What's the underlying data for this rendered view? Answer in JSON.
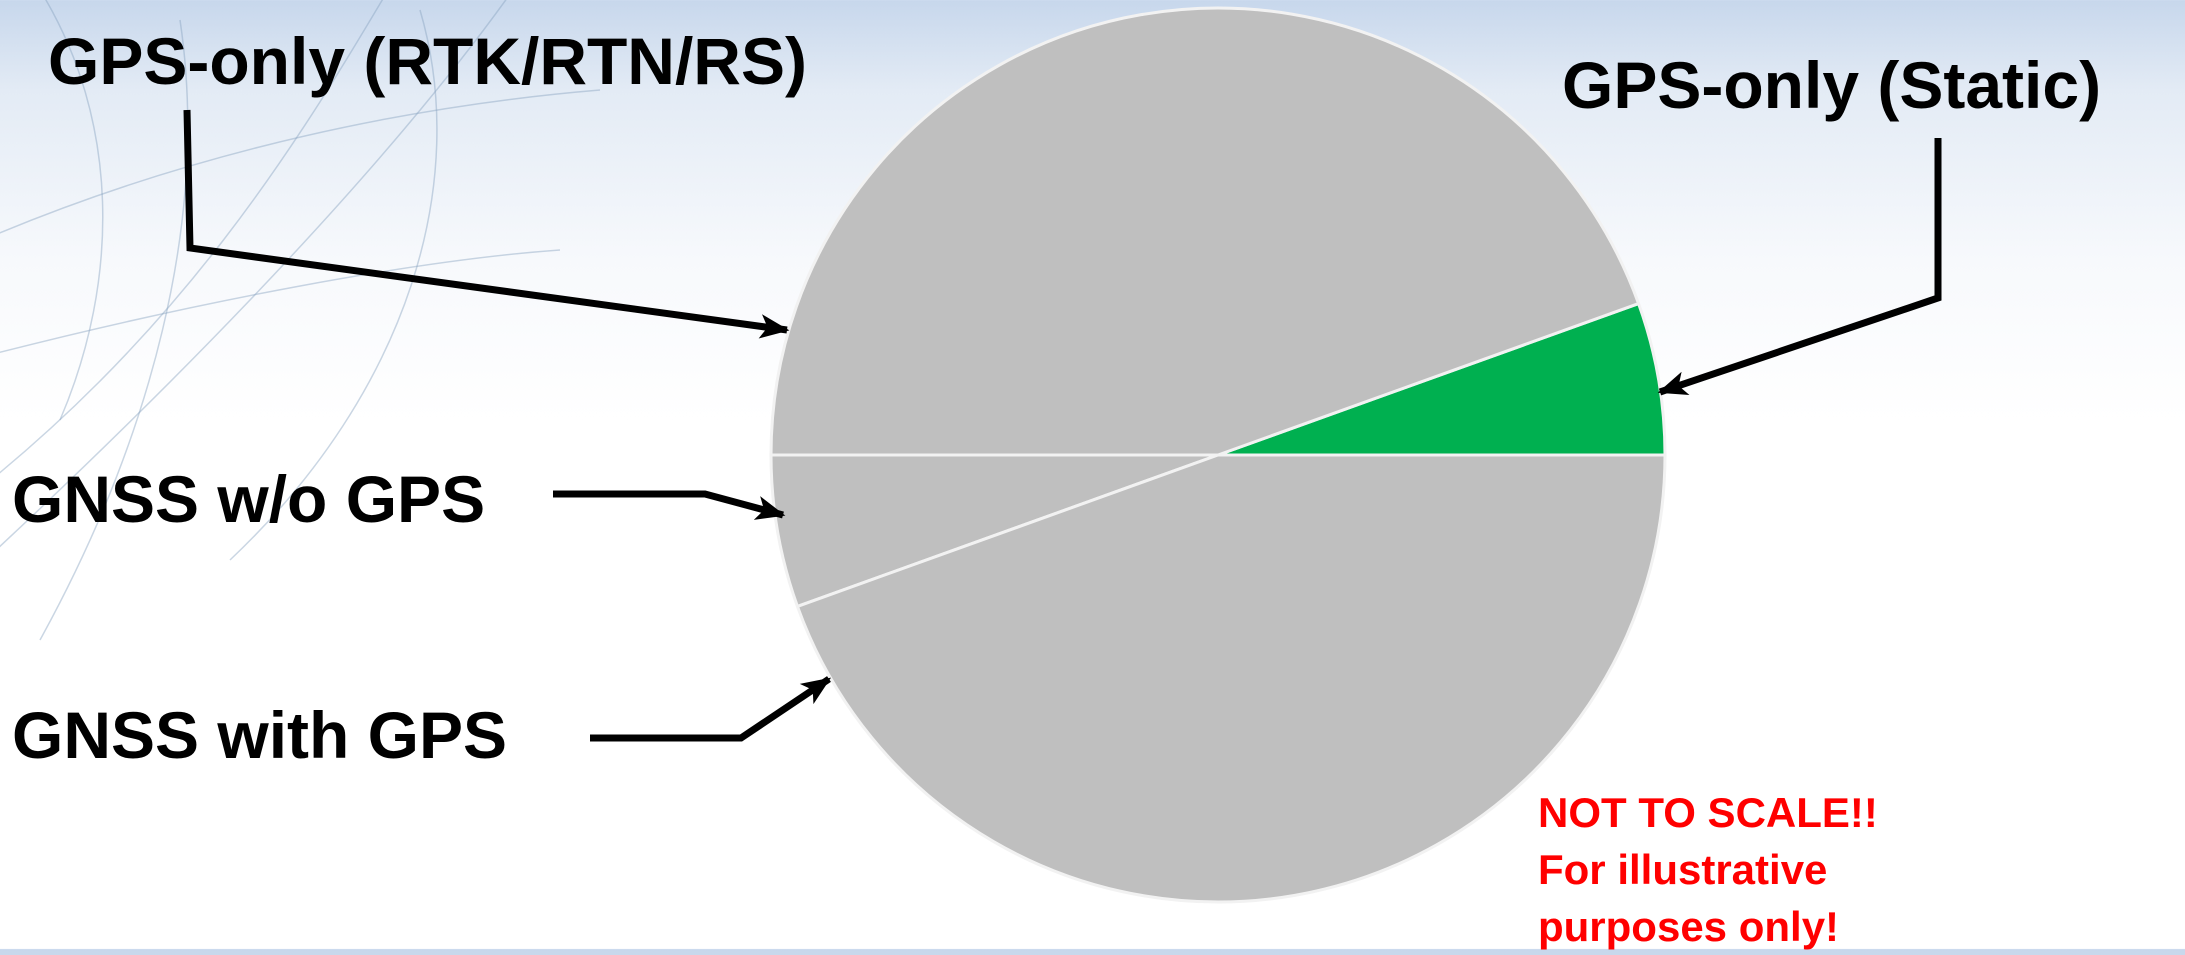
{
  "chart_data": {
    "type": "pie",
    "title": "",
    "note_lines": [
      "NOT TO SCALE!!",
      "For illustrative",
      "purposes only!"
    ],
    "note_color": "#ff0000",
    "slice_color": "#bfbfbf",
    "slice_border_color": "#f2f2f2",
    "slices": [
      {
        "label": "GPS-only (Static)",
        "value": 5.5,
        "color": "#00b050",
        "pointer": "slice-static"
      },
      {
        "label": "GPS-only (RTK/RTN/RS)",
        "value": 44.5,
        "color": "#bfbfbf",
        "pointer": "slice-rtk"
      },
      {
        "label": "GNSS w/o GPS",
        "value": 5.5,
        "color": "#bfbfbf",
        "pointer": "slice-wo"
      },
      {
        "label": "GNSS with GPS",
        "value": 44.5,
        "color": "#bfbfbf",
        "pointer": "slice-with"
      }
    ],
    "start_angle_deg": 0,
    "direction": "counterclockwise",
    "legend": "none",
    "pointer_style": "black elbow arrows from labels to slices"
  },
  "labels": {
    "rtk": "GPS-only (RTK/RTN/RS)",
    "static": "GPS-only (Static)",
    "wo": "GNSS w/o GPS",
    "with": "GNSS with GPS"
  },
  "background": {
    "top_color": "#c7d7ec",
    "bottom_color": "#ffffff",
    "swirl_color": "#8aa3c2"
  }
}
